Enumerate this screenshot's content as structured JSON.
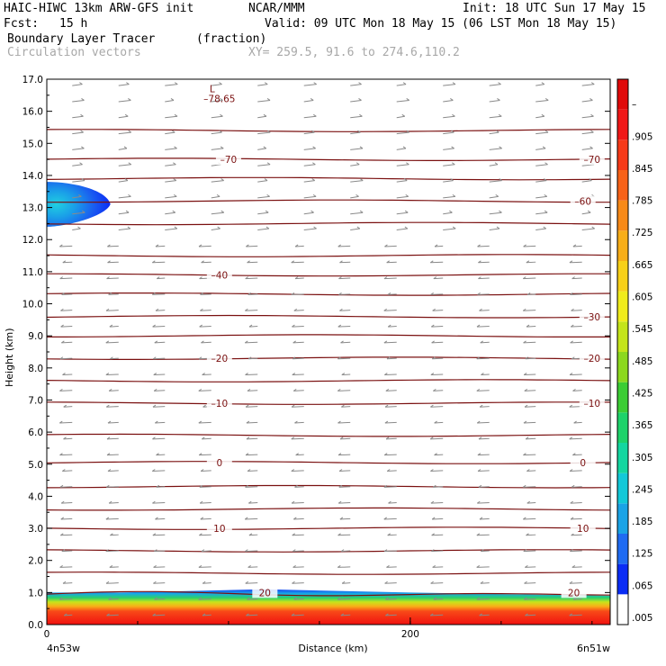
{
  "header": {
    "model": "HAIC-HIWC 13km ARW-GFS init",
    "org": "NCAR/MMM",
    "init": "Init: 18 UTC Sun 17 May 15",
    "fcst_label": "Fcst:",
    "fcst_value": "15 h",
    "valid": "Valid: 09 UTC Mon 18 May 15 (06 LST Mon 18 May 15)",
    "field": "Boundary Layer Tracer",
    "field_units": "(fraction)",
    "vectors": "Circulation vectors",
    "xy": "XY= 259.5, 91.6 to 274.6,110.2"
  },
  "chart_data": {
    "type": "heatmap",
    "xlabel": "Distance (km)",
    "ylabel": "Height (km)",
    "xlim": [
      0,
      310
    ],
    "ylim": [
      0,
      17
    ],
    "x_ticks": [
      "0",
      "200"
    ],
    "x_tick_values": [
      0,
      200
    ],
    "x_end_labels": [
      "4n53w",
      "6n51w"
    ],
    "y_ticks": [
      "0.0",
      "1.0",
      "2.0",
      "3.0",
      "4.0",
      "5.0",
      "6.0",
      "7.0",
      "8.0",
      "9.0",
      "10.0",
      "11.0",
      "12.0",
      "13.0",
      "14.0",
      "15.0",
      "16.0",
      "17.0"
    ],
    "y_tick_values": [
      0,
      1,
      2,
      3,
      4,
      5,
      6,
      7,
      8,
      9,
      10,
      11,
      12,
      13,
      14,
      15,
      16,
      17
    ],
    "colorbar": {
      "labels": [
        ".005",
        ".065",
        ".125",
        ".185",
        ".245",
        ".305",
        ".365",
        ".425",
        ".485",
        ".545",
        ".605",
        ".665",
        ".725",
        ".785",
        ".845",
        ".905",
        "–"
      ],
      "colors": [
        "#ffffff",
        "#0a2cf5",
        "#1f6bf2",
        "#1aa3e6",
        "#12c8d8",
        "#14d6a0",
        "#1ed26a",
        "#3ccd34",
        "#8cd81e",
        "#c4e41a",
        "#f0ec1c",
        "#f8d018",
        "#f8ae18",
        "#f88a18",
        "#f86218",
        "#f63a18",
        "#f01818",
        "#e00a0a"
      ]
    },
    "tracer_regions": [
      {
        "name": "boundary-layer",
        "height_top_km": [
          1.0,
          1.0,
          1.05,
          1.1,
          1.05,
          1.0,
          0.95,
          0.9
        ],
        "distance_km": [
          0,
          40,
          80,
          120,
          160,
          200,
          250,
          310
        ]
      },
      {
        "name": "upper-plume",
        "distance_km": [
          0,
          35
        ],
        "height_km": [
          12.4,
          13.8
        ]
      }
    ],
    "temperature_contours": [
      {
        "label": "–70",
        "height_km": 14.5,
        "label_positions_km": [
          100,
          300
        ]
      },
      {
        "label": "–60",
        "height_km": 13.2,
        "label_positions_km": [
          295
        ]
      },
      {
        "label": "–40",
        "height_km": 10.9,
        "label_positions_km": [
          95
        ]
      },
      {
        "label": "–30",
        "height_km": 9.6,
        "label_positions_km": [
          300
        ]
      },
      {
        "label": "–20",
        "height_km": 8.3,
        "label_positions_km": [
          95,
          300
        ]
      },
      {
        "label": "–10",
        "height_km": 6.9,
        "label_positions_km": [
          95,
          300
        ]
      },
      {
        "label": "0",
        "height_km": 5.05,
        "label_positions_km": [
          95,
          295
        ]
      },
      {
        "label": "10",
        "height_km": 3.0,
        "label_positions_km": [
          95,
          295
        ]
      },
      {
        "label": "20",
        "height_km": 1.0,
        "label_positions_km": [
          120,
          290
        ]
      }
    ],
    "contour_levels_km": [
      0.95,
      1.6,
      2.3,
      3.0,
      3.6,
      4.3,
      5.05,
      5.9,
      6.9,
      7.6,
      8.3,
      9.0,
      9.6,
      10.3,
      10.9,
      11.5,
      12.5,
      13.2,
      13.9,
      14.5,
      15.4
    ],
    "min_marker": {
      "symbol": "L",
      "value": "–78.65",
      "x_km": 95,
      "y_km": 16.9
    }
  }
}
